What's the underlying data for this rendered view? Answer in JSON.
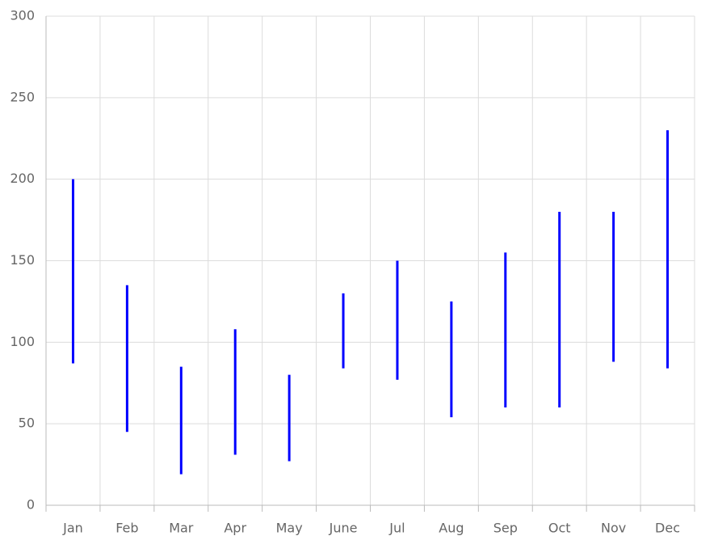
{
  "chart_data": {
    "type": "hilo",
    "categories": [
      "Jan",
      "Feb",
      "Mar",
      "Apr",
      "May",
      "June",
      "Jul",
      "Aug",
      "Sep",
      "Oct",
      "Nov",
      "Dec"
    ],
    "high": [
      200,
      135,
      85,
      108,
      80,
      130,
      150,
      125,
      155,
      180,
      180,
      230
    ],
    "low": [
      87,
      45,
      19,
      31,
      27,
      84,
      77,
      54,
      60,
      60,
      88,
      84
    ],
    "color": "#0000ff",
    "ylim": [
      0,
      300
    ],
    "yticks": [
      0,
      50,
      100,
      150,
      200,
      250,
      300
    ],
    "grid": true
  }
}
